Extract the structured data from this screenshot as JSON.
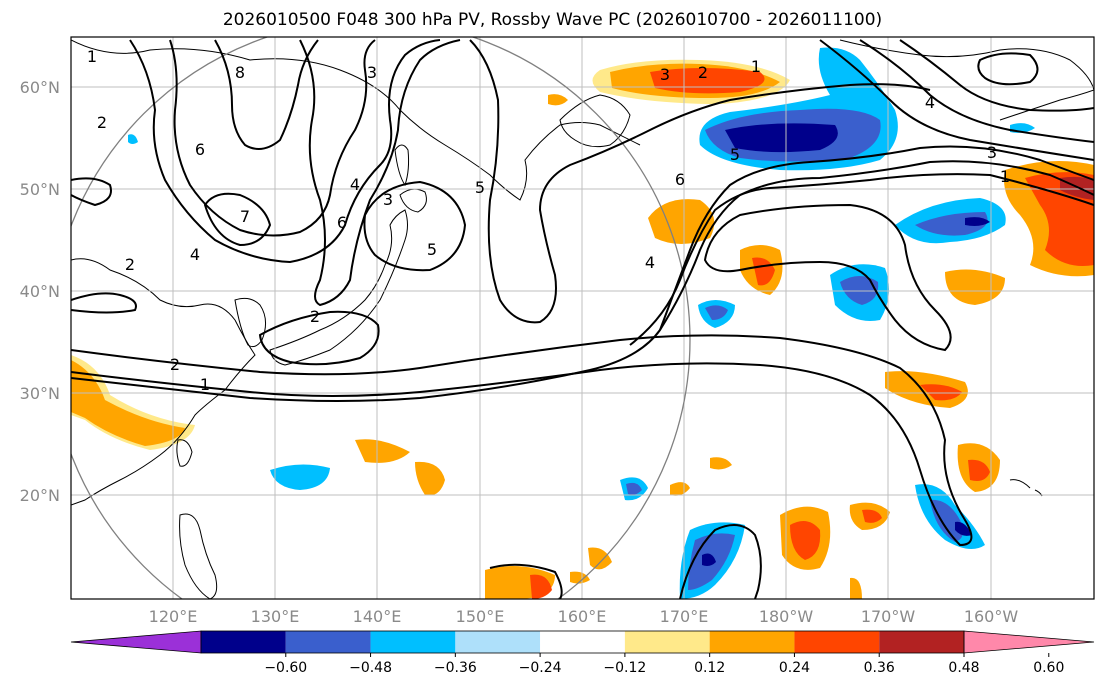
{
  "title": "2026010500 F048 300 hPa PV, Rossby Wave PC (2026010700 - 2026011100)",
  "axes": {
    "lat_labels": [
      "60°N",
      "50°N",
      "40°N",
      "30°N",
      "20°N"
    ],
    "lon_labels": [
      "120°E",
      "130°E",
      "140°E",
      "150°E",
      "160°E",
      "170°E",
      "180°W",
      "170°W",
      "160°W"
    ]
  },
  "colorbar": {
    "ticks": [
      "−0.60",
      "−0.48",
      "−0.36",
      "−0.24",
      "−0.12",
      "0.12",
      "0.24",
      "0.36",
      "0.48",
      "0.60"
    ],
    "colors": [
      "#9b30d8",
      "#00008b",
      "#3a5fcd",
      "#00bfff",
      "#aee0fa",
      "#ffffff",
      "#ffe98a",
      "#ffa500",
      "#ff4500",
      "#b22222",
      "#ff88aa"
    ]
  },
  "contour_labels": [
    "1",
    "2",
    "3",
    "4",
    "5",
    "6",
    "7",
    "8",
    "2",
    "4",
    "5",
    "6",
    "2",
    "3",
    "1",
    "2",
    "5",
    "4",
    "6",
    "3",
    "1",
    "2",
    "1",
    "4",
    "3"
  ],
  "colors": {
    "land_outline": "#000000",
    "grid": "#bfbfbf",
    "circle": "#808080"
  }
}
